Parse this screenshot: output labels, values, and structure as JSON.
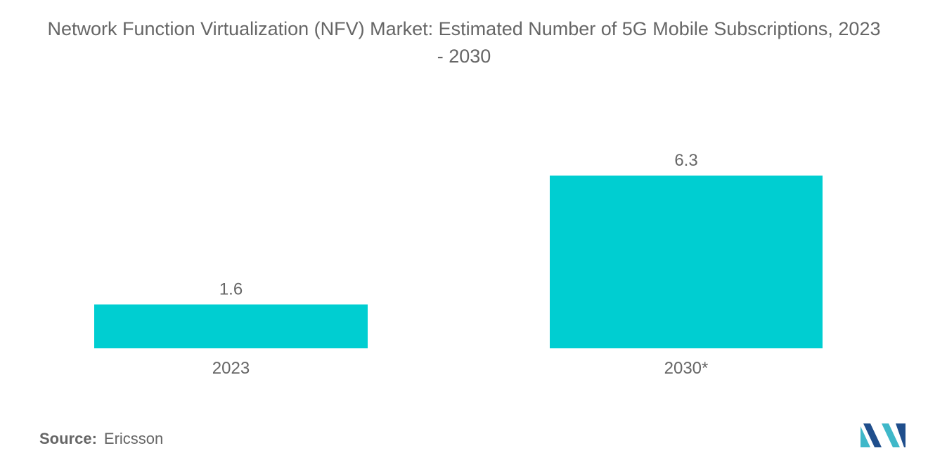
{
  "title": "Network Function Virtualization (NFV) Market: Estimated Number of 5G Mobile Subscriptions, 2023 - 2030",
  "source": {
    "label": "Source:",
    "value": "Ericsson"
  },
  "brand_logo": "mordor-intelligence-logo",
  "colors": {
    "bar": "#00CED1",
    "text": "#666666",
    "logo_dark": "#1F4E8C",
    "logo_light": "#3FB8C9"
  },
  "chart_data": {
    "type": "bar",
    "title": "Network Function Virtualization (NFV) Market: Estimated Number of 5G Mobile Subscriptions, 2023 - 2030",
    "categories": [
      "2023",
      "2030*"
    ],
    "values": [
      1.6,
      6.3
    ],
    "data_labels": [
      "1.6",
      "6.3"
    ],
    "xlabel": "",
    "ylabel": "",
    "ylim": [
      0,
      6.3
    ],
    "grid": false,
    "legend": "none"
  }
}
